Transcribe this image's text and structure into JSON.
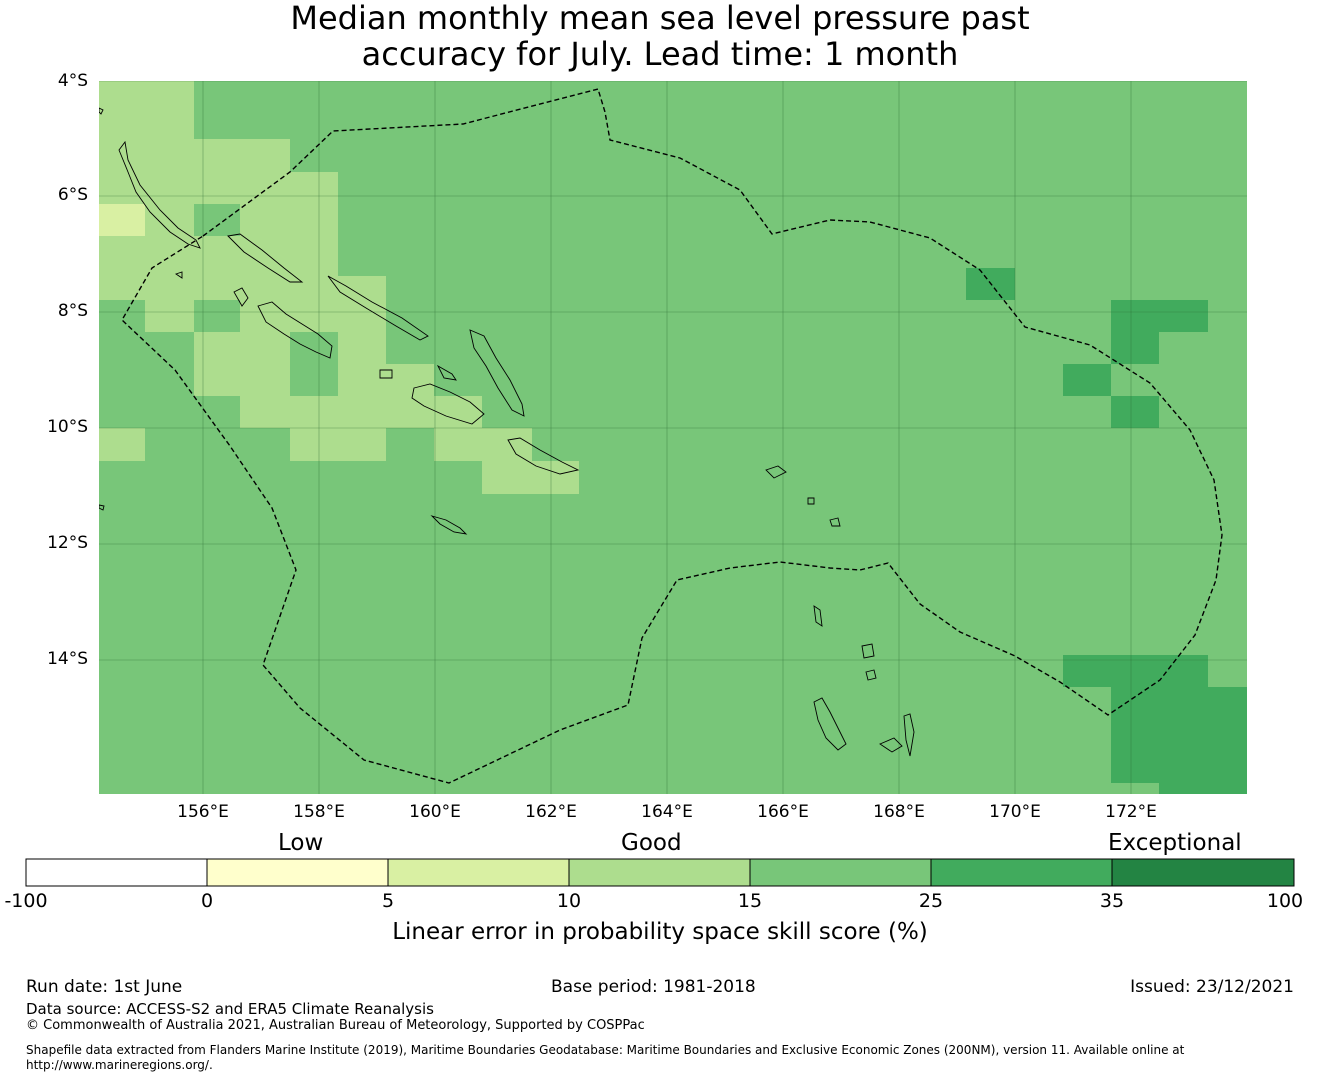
{
  "title": {
    "line1": "Median monthly mean sea level pressure past",
    "line2": "accuracy for July. Lead time: 1 month"
  },
  "map": {
    "lat_labels": [
      "4°S",
      "6°S",
      "8°S",
      "10°S",
      "12°S",
      "14°S"
    ],
    "lon_labels": [
      "156°E",
      "158°E",
      "160°E",
      "162°E",
      "164°E",
      "166°E",
      "168°E",
      "170°E",
      "172°E"
    ],
    "lat_range": [
      -16.3,
      -4.0
    ],
    "lon_range": [
      154.2,
      174.0
    ],
    "cell_size_deg": 0.55,
    "base_category": "15-25",
    "colors": {
      "0-5": "#ffffcc",
      "5-10": "#d9f0a3",
      "10-15": "#addd8e",
      "15-25": "#78c679",
      "25-35": "#41ab5d",
      "35-100": "#238443"
    }
  },
  "colorbar": {
    "categories": [
      "Low",
      "Good",
      "Exceptional"
    ],
    "ticks": [
      "-100",
      "0",
      "5",
      "10",
      "15",
      "25",
      "35",
      "100"
    ],
    "bin_colors": [
      "#ffffff",
      "#ffffcc",
      "#d9f0a3",
      "#addd8e",
      "#78c679",
      "#41ab5d",
      "#238443"
    ],
    "label": "Linear error in probability space skill score (%)"
  },
  "footer": {
    "run_date": "Run date: 1st June",
    "base_period": "Base period: 1981-2018",
    "issued": "Issued: 23/12/2021",
    "data_source": "Data source: ACCESS-S2 and ERA5 Climate Reanalysis",
    "copyright": "© Commonwealth of Australia 2021, Australian Bureau of Meteorology, Supported by COSPPac",
    "shapefile_line1": "Shapefile data extracted from Flanders Marine Institute (2019), Maritime Boundaries Geodatabase: Maritime Boundaries and Exclusive Economic Zones (200NM), version 11. Available online at",
    "shapefile_line2": "http://www.marineregions.org/."
  }
}
